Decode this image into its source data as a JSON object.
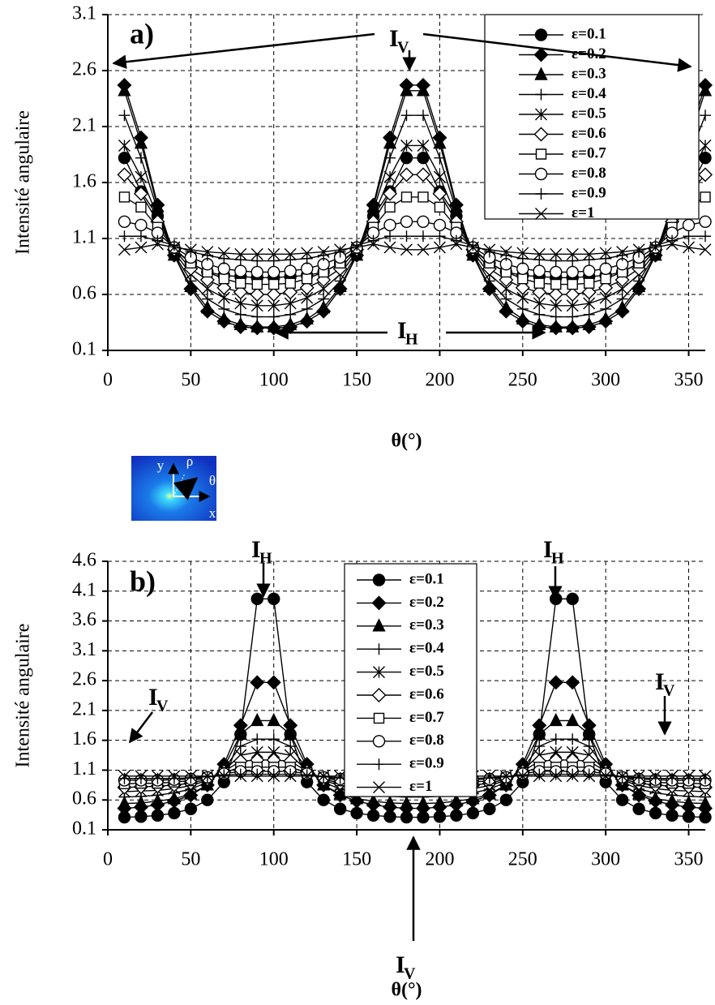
{
  "chart_data": [
    {
      "type": "line",
      "panel_label": "a)",
      "y_label": "Intensité angulaire",
      "x_label": "θ(°)",
      "xlim": [
        0,
        360
      ],
      "xticks": [
        0,
        50,
        100,
        150,
        200,
        250,
        300,
        350
      ],
      "ylim": [
        0.1,
        3.1
      ],
      "yticks": [
        0.1,
        0.6,
        1.1,
        1.6,
        2.1,
        2.6,
        3.1
      ],
      "grid": true,
      "legend": "upper right",
      "x": [
        10,
        20,
        30,
        40,
        50,
        60,
        70,
        80,
        90,
        100,
        110,
        120,
        130,
        140,
        150,
        160,
        170,
        180,
        190,
        200,
        210,
        220,
        230,
        240,
        250,
        260,
        270,
        280,
        290,
        300,
        310,
        320,
        330,
        340,
        350,
        360
      ],
      "series": [
        {
          "name": "ε=0.1",
          "color": "#000000",
          "marker": "filled-circle",
          "values": [
            1.82,
            1.52,
            1.3,
            1.0,
            0.88,
            0.8,
            0.77,
            0.76,
            0.75,
            0.75,
            0.76,
            0.77,
            0.8,
            0.88,
            1.0,
            1.3,
            1.52,
            1.82,
            1.82,
            1.52,
            1.3,
            1.0,
            0.88,
            0.8,
            0.77,
            0.76,
            0.75,
            0.75,
            0.76,
            0.77,
            0.8,
            0.88,
            1.0,
            1.3,
            1.52,
            1.82
          ]
        },
        {
          "name": "ε=0.2",
          "color": "#000000",
          "marker": "filled-diamond",
          "values": [
            2.47,
            2.0,
            1.4,
            0.95,
            0.65,
            0.45,
            0.36,
            0.31,
            0.3,
            0.3,
            0.31,
            0.36,
            0.45,
            0.65,
            0.95,
            1.4,
            2.0,
            2.47,
            2.47,
            2.0,
            1.4,
            0.95,
            0.65,
            0.45,
            0.36,
            0.31,
            0.3,
            0.3,
            0.31,
            0.36,
            0.45,
            0.65,
            0.95,
            1.4,
            2.0,
            2.47
          ]
        },
        {
          "name": "ε=0.3",
          "color": "#000000",
          "marker": "filled-triangle",
          "values": [
            2.42,
            1.95,
            1.38,
            0.95,
            0.67,
            0.48,
            0.38,
            0.33,
            0.31,
            0.31,
            0.33,
            0.38,
            0.48,
            0.67,
            0.95,
            1.38,
            1.95,
            2.42,
            2.42,
            1.95,
            1.38,
            0.95,
            0.67,
            0.48,
            0.38,
            0.33,
            0.31,
            0.31,
            0.33,
            0.38,
            0.48,
            0.67,
            0.95,
            1.38,
            1.95,
            2.42
          ]
        },
        {
          "name": "ε=0.4",
          "color": "#000000",
          "marker": "plus",
          "values": [
            2.2,
            1.82,
            1.35,
            0.96,
            0.72,
            0.56,
            0.47,
            0.42,
            0.4,
            0.4,
            0.42,
            0.47,
            0.56,
            0.72,
            0.96,
            1.35,
            1.82,
            2.2,
            2.2,
            1.82,
            1.35,
            0.96,
            0.72,
            0.56,
            0.47,
            0.42,
            0.4,
            0.4,
            0.42,
            0.47,
            0.56,
            0.72,
            0.96,
            1.35,
            1.82,
            2.2
          ]
        },
        {
          "name": "ε=0.5",
          "color": "#000000",
          "marker": "asterisk",
          "values": [
            1.93,
            1.65,
            1.3,
            0.98,
            0.78,
            0.65,
            0.57,
            0.52,
            0.5,
            0.5,
            0.52,
            0.57,
            0.65,
            0.78,
            0.98,
            1.3,
            1.65,
            1.93,
            1.93,
            1.65,
            1.3,
            0.98,
            0.78,
            0.65,
            0.57,
            0.52,
            0.5,
            0.5,
            0.52,
            0.57,
            0.65,
            0.78,
            0.98,
            1.3,
            1.65,
            1.93
          ]
        },
        {
          "name": "ε=0.6",
          "color": "#000000",
          "marker": "open-diamond",
          "values": [
            1.67,
            1.5,
            1.25,
            1.0,
            0.83,
            0.73,
            0.66,
            0.62,
            0.6,
            0.6,
            0.62,
            0.66,
            0.73,
            0.83,
            1.0,
            1.25,
            1.5,
            1.67,
            1.67,
            1.5,
            1.25,
            1.0,
            0.83,
            0.73,
            0.66,
            0.62,
            0.6,
            0.6,
            0.62,
            0.66,
            0.73,
            0.83,
            1.0,
            1.25,
            1.5,
            1.67
          ]
        },
        {
          "name": "ε=0.7",
          "color": "#000000",
          "marker": "open-square",
          "values": [
            1.47,
            1.38,
            1.2,
            1.01,
            0.88,
            0.8,
            0.74,
            0.7,
            0.69,
            0.69,
            0.7,
            0.74,
            0.8,
            0.88,
            1.01,
            1.2,
            1.38,
            1.47,
            1.47,
            1.38,
            1.2,
            1.01,
            0.88,
            0.8,
            0.74,
            0.7,
            0.69,
            0.69,
            0.7,
            0.74,
            0.8,
            0.88,
            1.01,
            1.2,
            1.38,
            1.47
          ]
        },
        {
          "name": "ε=0.8",
          "color": "#000000",
          "marker": "open-circle",
          "values": [
            1.25,
            1.22,
            1.15,
            1.02,
            0.93,
            0.87,
            0.83,
            0.81,
            0.8,
            0.8,
            0.81,
            0.83,
            0.87,
            0.93,
            1.02,
            1.15,
            1.22,
            1.25,
            1.25,
            1.22,
            1.15,
            1.02,
            0.93,
            0.87,
            0.83,
            0.81,
            0.8,
            0.8,
            0.81,
            0.83,
            0.87,
            0.93,
            1.02,
            1.15,
            1.22,
            1.25
          ]
        },
        {
          "name": "ε=0.9",
          "color": "#000000",
          "marker": "plus",
          "values": [
            1.12,
            1.12,
            1.08,
            1.04,
            0.98,
            0.95,
            0.92,
            0.91,
            0.9,
            0.9,
            0.91,
            0.92,
            0.95,
            0.98,
            1.04,
            1.08,
            1.12,
            1.12,
            1.12,
            1.12,
            1.08,
            1.04,
            0.98,
            0.95,
            0.92,
            0.91,
            0.9,
            0.9,
            0.91,
            0.92,
            0.95,
            0.98,
            1.04,
            1.08,
            1.12,
            1.12
          ]
        },
        {
          "name": "ε=1",
          "color": "#000000",
          "marker": "cross",
          "values": [
            1.0,
            1.02,
            1.05,
            1.02,
            1.0,
            0.98,
            0.97,
            0.96,
            0.96,
            0.96,
            0.96,
            0.97,
            0.98,
            1.0,
            1.02,
            1.05,
            1.02,
            1.0,
            1.0,
            1.02,
            1.05,
            1.02,
            1.0,
            0.98,
            0.97,
            0.96,
            0.96,
            0.96,
            0.96,
            0.97,
            0.98,
            1.0,
            1.02,
            1.05,
            1.02,
            1.0
          ]
        }
      ],
      "annotations": [
        {
          "label": "I",
          "subscript": "V"
        },
        {
          "label": "I",
          "subscript": "H"
        }
      ]
    },
    {
      "type": "line",
      "panel_label": "b)",
      "y_label": "Intensité angulaire",
      "x_label": "θ(°)",
      "xlim": [
        0,
        360
      ],
      "xticks": [
        0,
        50,
        100,
        150,
        200,
        250,
        300,
        350
      ],
      "ylim": [
        0.1,
        4.6
      ],
      "yticks": [
        0.1,
        0.6,
        1.1,
        1.6,
        2.1,
        2.6,
        3.1,
        3.6,
        4.1,
        4.6
      ],
      "grid": true,
      "legend": "upper center",
      "x": [
        10,
        20,
        30,
        40,
        50,
        60,
        70,
        80,
        90,
        100,
        110,
        120,
        130,
        140,
        150,
        160,
        170,
        180,
        190,
        200,
        210,
        220,
        230,
        240,
        250,
        260,
        270,
        280,
        290,
        300,
        310,
        320,
        330,
        340,
        350,
        360
      ],
      "series": [
        {
          "name": "ε=0.1",
          "color": "#000000",
          "marker": "filled-circle",
          "values": [
            0.31,
            0.32,
            0.34,
            0.38,
            0.45,
            0.6,
            0.9,
            1.7,
            3.97,
            3.97,
            1.7,
            0.9,
            0.6,
            0.45,
            0.38,
            0.34,
            0.32,
            0.31,
            0.31,
            0.32,
            0.34,
            0.38,
            0.45,
            0.6,
            0.9,
            1.7,
            3.97,
            3.97,
            1.7,
            0.9,
            0.6,
            0.45,
            0.38,
            0.34,
            0.32,
            0.31
          ]
        },
        {
          "name": "ε=0.2",
          "color": "#000000",
          "marker": "filled-diamond",
          "values": [
            0.46,
            0.48,
            0.52,
            0.58,
            0.68,
            0.85,
            1.2,
            1.85,
            2.57,
            2.57,
            1.85,
            1.2,
            0.85,
            0.68,
            0.58,
            0.52,
            0.48,
            0.46,
            0.46,
            0.48,
            0.52,
            0.58,
            0.68,
            0.85,
            1.2,
            1.85,
            2.57,
            2.57,
            1.85,
            1.2,
            0.85,
            0.68,
            0.58,
            0.52,
            0.48,
            0.46
          ]
        },
        {
          "name": "ε=0.3",
          "color": "#000000",
          "marker": "filled-triangle",
          "values": [
            0.54,
            0.55,
            0.58,
            0.62,
            0.7,
            0.85,
            1.15,
            1.7,
            1.93,
            1.93,
            1.7,
            1.15,
            0.85,
            0.7,
            0.62,
            0.58,
            0.55,
            0.54,
            0.54,
            0.55,
            0.58,
            0.62,
            0.7,
            0.85,
            1.15,
            1.7,
            1.93,
            1.93,
            1.7,
            1.15,
            0.85,
            0.7,
            0.62,
            0.58,
            0.55,
            0.54
          ]
        },
        {
          "name": "ε=0.4",
          "color": "#000000",
          "marker": "plus",
          "values": [
            0.65,
            0.66,
            0.68,
            0.72,
            0.78,
            0.9,
            1.12,
            1.5,
            1.62,
            1.62,
            1.5,
            1.12,
            0.9,
            0.78,
            0.72,
            0.68,
            0.66,
            0.65,
            0.65,
            0.66,
            0.68,
            0.72,
            0.78,
            0.9,
            1.12,
            1.5,
            1.62,
            1.62,
            1.5,
            1.12,
            0.9,
            0.78,
            0.72,
            0.68,
            0.66,
            0.65
          ]
        },
        {
          "name": "ε=0.5",
          "color": "#000000",
          "marker": "asterisk",
          "values": [
            0.74,
            0.75,
            0.76,
            0.79,
            0.84,
            0.93,
            1.1,
            1.35,
            1.4,
            1.4,
            1.35,
            1.1,
            0.93,
            0.84,
            0.79,
            0.76,
            0.75,
            0.74,
            0.74,
            0.75,
            0.76,
            0.79,
            0.84,
            0.93,
            1.1,
            1.35,
            1.4,
            1.4,
            1.35,
            1.1,
            0.93,
            0.84,
            0.79,
            0.76,
            0.75,
            0.74
          ]
        },
        {
          "name": "ε=0.6",
          "color": "#000000",
          "marker": "open-diamond",
          "values": [
            0.81,
            0.82,
            0.83,
            0.85,
            0.88,
            0.95,
            1.08,
            1.25,
            1.27,
            1.27,
            1.25,
            1.08,
            0.95,
            0.88,
            0.85,
            0.83,
            0.82,
            0.81,
            0.81,
            0.82,
            0.83,
            0.85,
            0.88,
            0.95,
            1.08,
            1.25,
            1.27,
            1.27,
            1.25,
            1.08,
            0.95,
            0.88,
            0.85,
            0.83,
            0.82,
            0.81
          ]
        },
        {
          "name": "ε=0.7",
          "color": "#000000",
          "marker": "open-square",
          "values": [
            0.87,
            0.88,
            0.88,
            0.9,
            0.92,
            0.97,
            1.06,
            1.15,
            1.15,
            1.15,
            1.15,
            1.06,
            0.97,
            0.92,
            0.9,
            0.88,
            0.88,
            0.87,
            0.87,
            0.88,
            0.88,
            0.9,
            0.92,
            0.97,
            1.06,
            1.15,
            1.15,
            1.15,
            1.15,
            1.06,
            0.97,
            0.92,
            0.9,
            0.88,
            0.88,
            0.87
          ]
        },
        {
          "name": "ε=0.8",
          "color": "#000000",
          "marker": "open-circle",
          "values": [
            0.93,
            0.93,
            0.93,
            0.94,
            0.95,
            0.98,
            1.04,
            1.08,
            1.08,
            1.08,
            1.08,
            1.04,
            0.98,
            0.95,
            0.94,
            0.93,
            0.93,
            0.93,
            0.93,
            0.93,
            0.93,
            0.94,
            0.95,
            0.98,
            1.04,
            1.08,
            1.08,
            1.08,
            1.08,
            1.04,
            0.98,
            0.95,
            0.94,
            0.93,
            0.93,
            0.93
          ]
        },
        {
          "name": "ε=0.9",
          "color": "#000000",
          "marker": "plus",
          "values": [
            0.96,
            0.96,
            0.96,
            0.96,
            0.97,
            0.99,
            1.02,
            1.03,
            1.03,
            1.03,
            1.03,
            1.02,
            0.99,
            0.97,
            0.96,
            0.96,
            0.96,
            0.96,
            0.96,
            0.96,
            0.96,
            0.96,
            0.97,
            0.99,
            1.02,
            1.03,
            1.03,
            1.03,
            1.03,
            1.02,
            0.99,
            0.97,
            0.96,
            0.96,
            0.96,
            0.96
          ]
        },
        {
          "name": "ε=1",
          "color": "#000000",
          "marker": "cross",
          "values": [
            1.0,
            1.0,
            1.0,
            1.0,
            1.0,
            1.0,
            1.0,
            1.0,
            1.0,
            1.0,
            1.0,
            1.0,
            1.0,
            1.0,
            1.0,
            1.0,
            1.0,
            1.0,
            1.0,
            1.0,
            1.0,
            1.0,
            1.0,
            1.0,
            1.0,
            1.0,
            1.0,
            1.0,
            1.0,
            1.0,
            1.0,
            1.0,
            1.0,
            1.0,
            1.0,
            1.0
          ]
        }
      ],
      "annotations": [
        {
          "label": "I",
          "subscript": "H"
        },
        {
          "label": "I",
          "subscript": "H"
        },
        {
          "label": "I",
          "subscript": "V"
        },
        {
          "label": "I",
          "subscript": "V"
        },
        {
          "label": "I",
          "subscript": "V"
        }
      ]
    }
  ],
  "inset_labels": [
    "y",
    "ρ",
    "θ",
    "x"
  ]
}
